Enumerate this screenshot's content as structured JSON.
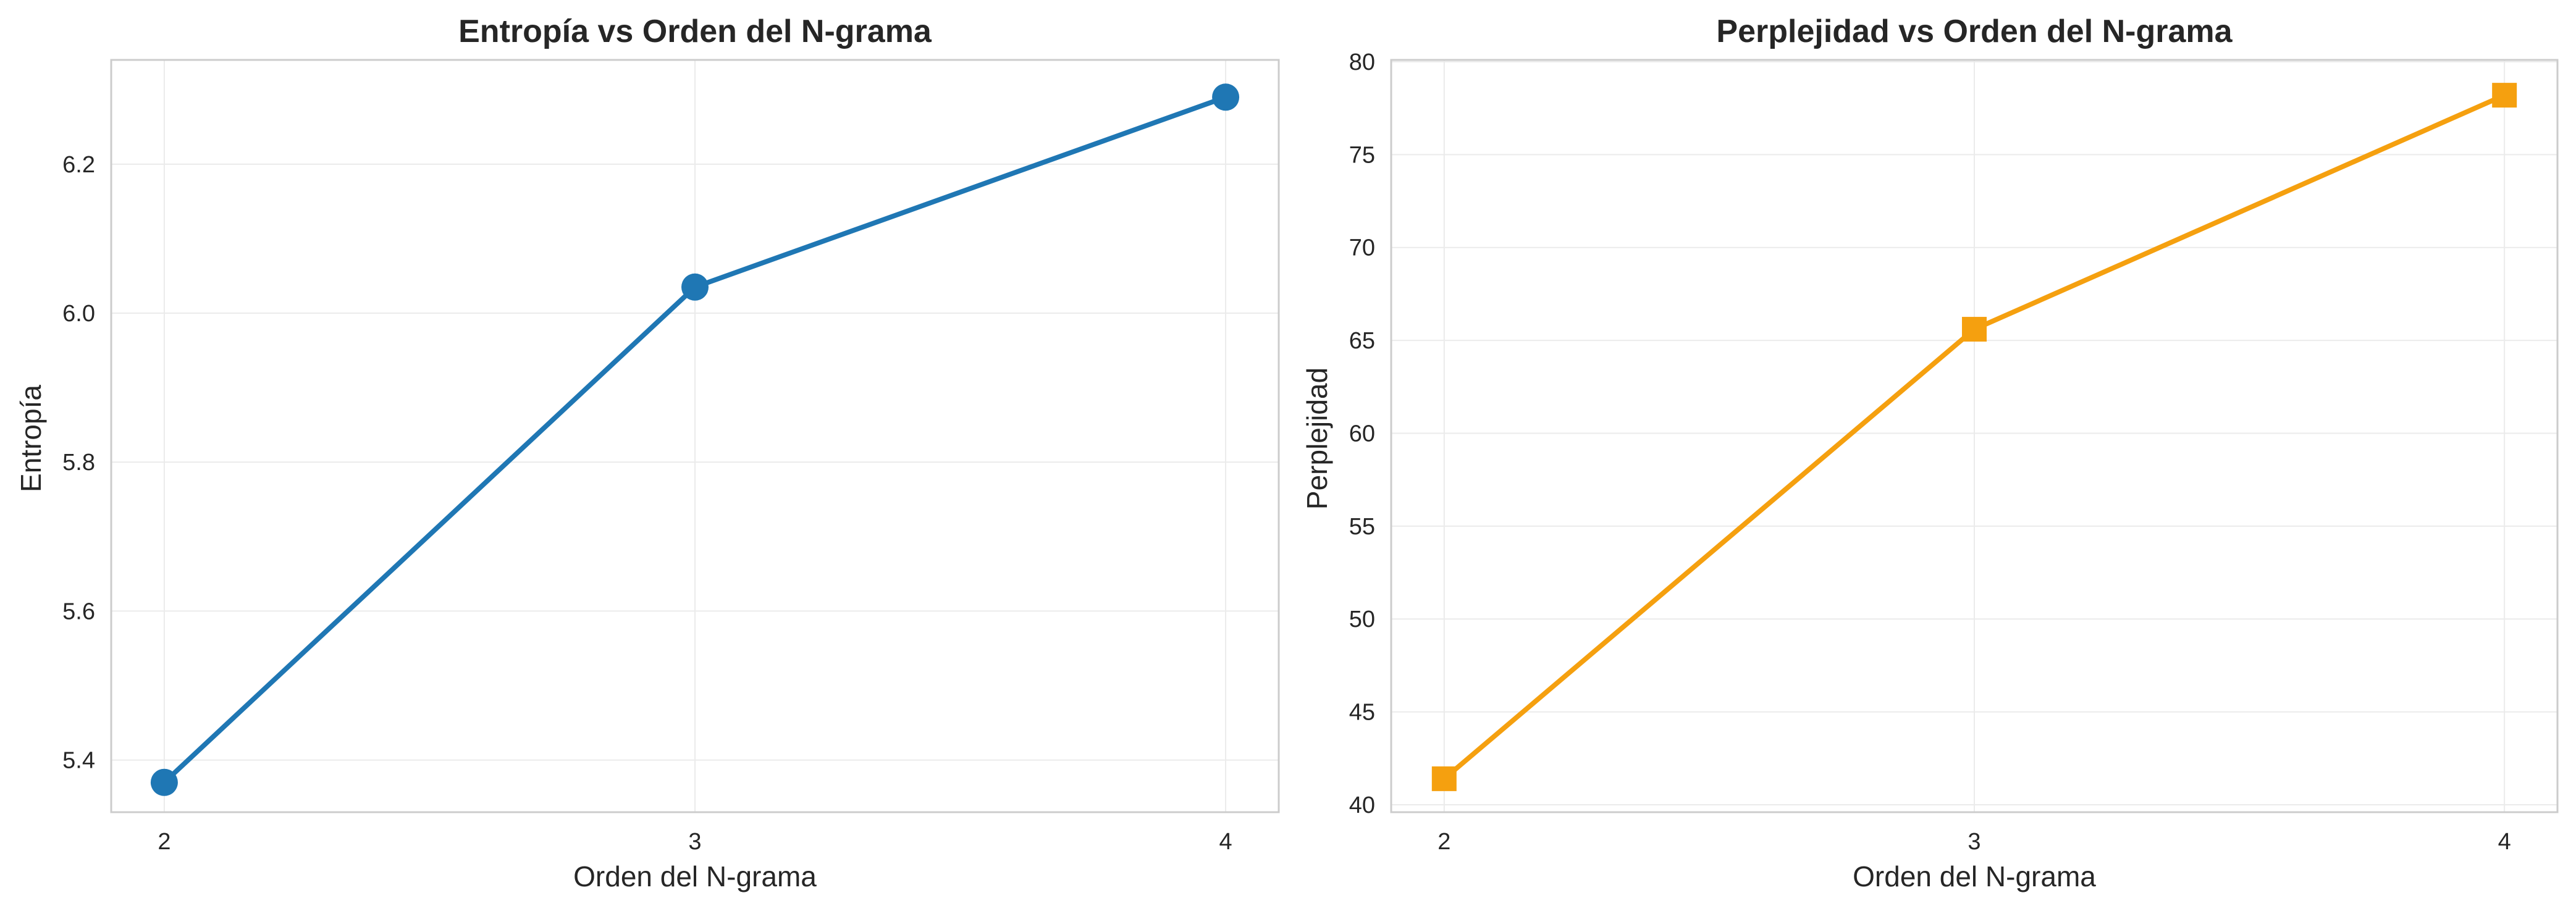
{
  "chart_data": [
    {
      "type": "line",
      "title": "Entropía vs Orden del N-grama",
      "xlabel": "Orden del N-grama",
      "ylabel": "Entropía",
      "x": [
        2,
        3,
        4
      ],
      "xticks": [
        "2",
        "3",
        "4"
      ],
      "yticks": [
        "5.4",
        "5.6",
        "5.8",
        "6.0",
        "6.2"
      ],
      "ylim": [
        5.33,
        6.34
      ],
      "grid": true,
      "series": [
        {
          "values": [
            5.37,
            6.035,
            6.29
          ],
          "color": "#1f77b4",
          "marker": "circle"
        }
      ]
    },
    {
      "type": "line",
      "title": "Perplejidad vs Orden del N-grama",
      "xlabel": "Orden del N-grama",
      "ylabel": "Perplejidad",
      "x": [
        2,
        3,
        4
      ],
      "xticks": [
        "2",
        "3",
        "4"
      ],
      "yticks": [
        "40",
        "45",
        "50",
        "55",
        "60",
        "65",
        "70",
        "75",
        "80"
      ],
      "ylim": [
        39.6,
        80.1
      ],
      "grid": true,
      "series": [
        {
          "values": [
            41.4,
            65.6,
            78.2
          ],
          "color": "#f5a00f",
          "marker": "square"
        }
      ]
    }
  ]
}
